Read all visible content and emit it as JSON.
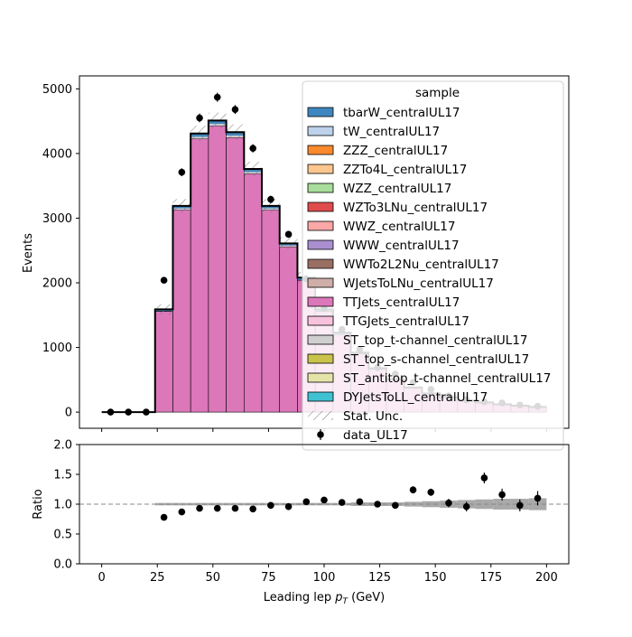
{
  "chart_data": [
    {
      "type": "bar",
      "ylabel": "Events",
      "xlim": [
        -10,
        210
      ],
      "ylim": [
        -250,
        5200
      ],
      "yticks": [
        0,
        1000,
        2000,
        3000,
        4000,
        5000
      ],
      "grid": false,
      "x_bin_edges": [
        0,
        8,
        16,
        24,
        32,
        40,
        48,
        56,
        64,
        72,
        80,
        88,
        96,
        104,
        112,
        120,
        128,
        136,
        144,
        152,
        160,
        168,
        176,
        184,
        192,
        200
      ],
      "stack_total": [
        0,
        0,
        0,
        1590,
        3190,
        4310,
        4510,
        4330,
        3760,
        3190,
        2610,
        2080,
        1590,
        1230,
        920,
        680,
        510,
        380,
        290,
        230,
        180,
        150,
        120,
        100,
        80
      ],
      "ttjets": [
        0,
        0,
        0,
        1560,
        3130,
        4230,
        4430,
        4250,
        3690,
        3130,
        2560,
        2040,
        1560,
        1200,
        900,
        665,
        500,
        372,
        283,
        224,
        175,
        146,
        117,
        97,
        78
      ],
      "data_x": [
        4,
        12,
        20,
        28,
        36,
        44,
        52,
        60,
        68,
        76,
        84,
        92,
        100,
        108,
        116,
        124,
        132,
        140,
        148,
        156,
        164,
        172,
        180,
        188,
        196
      ],
      "data_y": [
        0,
        0,
        0,
        2040,
        3710,
        4550,
        4870,
        4680,
        4080,
        3290,
        2750,
        2060,
        1600,
        1280,
        970,
        690,
        590,
        460,
        350,
        250,
        190,
        160,
        140,
        110,
        90
      ],
      "legend": {
        "title": "sample",
        "placement": "upper right",
        "entries": [
          {
            "label": "tbarW_centralUL17",
            "color": "#3f87c0"
          },
          {
            "label": "tW_centralUL17",
            "color": "#bdd2ea"
          },
          {
            "label": "ZZZ_centralUL17",
            "color": "#fb8a2e"
          },
          {
            "label": "ZZTo4L_centralUL17",
            "color": "#fdc68f"
          },
          {
            "label": "WZZ_centralUL17",
            "color": "#a8dd9b"
          },
          {
            "label": "WZTo3LNu_centralUL17",
            "color": "#e04b4b"
          },
          {
            "label": "WWZ_centralUL17",
            "color": "#f9a7a7"
          },
          {
            "label": "WWW_centralUL17",
            "color": "#aa8fd0"
          },
          {
            "label": "WWTo2L2Nu_centralUL17",
            "color": "#9a6f63"
          },
          {
            "label": "WJetsToLNu_centralUL17",
            "color": "#cfaea8"
          },
          {
            "label": "TTJets_centralUL17",
            "color": "#dc77b9"
          },
          {
            "label": "TTGJets_centralUL17",
            "color": "#f6c2dc"
          },
          {
            "label": "ST_top_t-channel_centralUL17",
            "color": "#cfcfcf"
          },
          {
            "label": "ST_top_s-channel_centralUL17",
            "color": "#c9c34b"
          },
          {
            "label": "ST_antitop_t-channel_centralUL17",
            "color": "#e6e3a9"
          },
          {
            "label": "DYJetsToLL_centralUL17",
            "color": "#40c1d2"
          }
        ],
        "unc_label": "Stat. Unc.",
        "data_label": "data_UL17"
      }
    },
    {
      "type": "scatter",
      "xlabel": "Leading lep $p_T$ (GeV)",
      "xlabel_main": "Leading lep ",
      "xlabel_sym": "p",
      "xlabel_sub": "T",
      "xlabel_unit": " (GeV)",
      "ylabel": "Ratio",
      "xlim": [
        -10,
        210
      ],
      "ylim": [
        0.0,
        2.0
      ],
      "xticks": [
        0,
        25,
        50,
        75,
        100,
        125,
        150,
        175,
        200
      ],
      "yticks": [
        "0.0",
        "0.5",
        "1.0",
        "1.5",
        "2.0"
      ],
      "reference_line": 1.0,
      "x": [
        28,
        36,
        44,
        52,
        60,
        68,
        76,
        84,
        92,
        100,
        108,
        116,
        124,
        132,
        140,
        148,
        156,
        164,
        172,
        180,
        188,
        196
      ],
      "y": [
        0.78,
        0.87,
        0.93,
        0.93,
        0.93,
        0.92,
        0.98,
        0.96,
        1.04,
        1.07,
        1.03,
        1.04,
        1.0,
        0.98,
        1.24,
        1.2,
        1.02,
        0.96,
        1.44,
        1.16,
        0.98,
        1.1
      ],
      "yerr": [
        0.02,
        0.02,
        0.02,
        0.02,
        0.02,
        0.02,
        0.02,
        0.02,
        0.03,
        0.03,
        0.03,
        0.04,
        0.04,
        0.05,
        0.06,
        0.06,
        0.07,
        0.08,
        0.09,
        0.1,
        0.1,
        0.12
      ],
      "unc_band_halfwidth": [
        0.02,
        0.02,
        0.02,
        0.02,
        0.02,
        0.02,
        0.02,
        0.02,
        0.02,
        0.02,
        0.02,
        0.03,
        0.03,
        0.03,
        0.04,
        0.05,
        0.06,
        0.07,
        0.08,
        0.09,
        0.09,
        0.1
      ]
    }
  ]
}
